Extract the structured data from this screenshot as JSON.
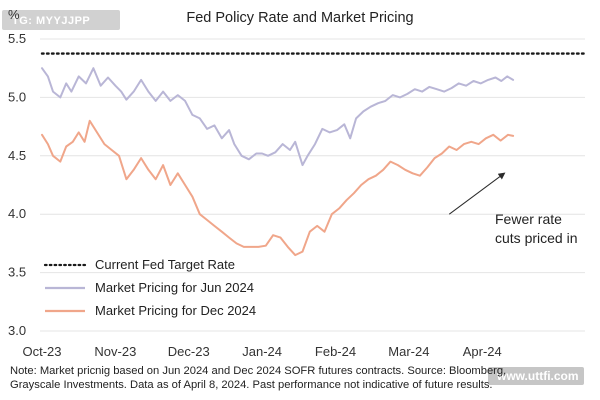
{
  "tag": "TG: MYYJJPP",
  "watermark": "www.uttfi.com",
  "footnote_line1": "Note: Market pricnig based on Jun 2024 and Dec 2024 SOFR futures contracts. Source: Bloomberg,",
  "footnote_line2": "Grayscale Investments. Data as of April 8, 2024. Past performance not indicative of future results.",
  "annotation": [
    "Fewer rate",
    "cuts priced in"
  ],
  "colors": {
    "target": "#1a1a1a",
    "jun": "#b9b6d6",
    "dec": "#f0a68a",
    "grid": "#e4e4e4",
    "arrow": "#2b2b2b"
  },
  "chart_data": {
    "type": "line",
    "title": "Fed Policy Rate and Market Pricing",
    "ylabel": "%",
    "ylim": [
      3.0,
      5.5
    ],
    "yticks": [
      "3.0",
      "3.5",
      "4.0",
      "4.5",
      "5.0",
      "5.5"
    ],
    "xlim": [
      0,
      7.4
    ],
    "xticks": [
      {
        "label": "Oct-23",
        "x": 0
      },
      {
        "label": "Nov-23",
        "x": 1
      },
      {
        "label": "Dec-23",
        "x": 2
      },
      {
        "label": "Jan-24",
        "x": 3
      },
      {
        "label": "Feb-24",
        "x": 4
      },
      {
        "label": "Mar-24",
        "x": 5
      },
      {
        "label": "Apr-24",
        "x": 6
      }
    ],
    "legend_position": "bottom-left",
    "series": [
      {
        "name": "Current Fed Target Rate",
        "style": "dotted",
        "color_key": "target",
        "points": [
          [
            0,
            5.375
          ],
          [
            7.4,
            5.375
          ]
        ]
      },
      {
        "name": "Market Pricing for Jun 2024",
        "style": "solid",
        "color_key": "jun",
        "points": [
          [
            0,
            5.25
          ],
          [
            0.08,
            5.18
          ],
          [
            0.15,
            5.05
          ],
          [
            0.25,
            5.0
          ],
          [
            0.33,
            5.12
          ],
          [
            0.4,
            5.05
          ],
          [
            0.5,
            5.18
          ],
          [
            0.6,
            5.12
          ],
          [
            0.7,
            5.25
          ],
          [
            0.8,
            5.1
          ],
          [
            0.9,
            5.17
          ],
          [
            1.0,
            5.1
          ],
          [
            1.08,
            5.05
          ],
          [
            1.15,
            4.98
          ],
          [
            1.25,
            5.05
          ],
          [
            1.35,
            5.15
          ],
          [
            1.45,
            5.05
          ],
          [
            1.55,
            4.97
          ],
          [
            1.65,
            5.05
          ],
          [
            1.75,
            4.97
          ],
          [
            1.85,
            5.02
          ],
          [
            1.95,
            4.97
          ],
          [
            2.05,
            4.85
          ],
          [
            2.15,
            4.82
          ],
          [
            2.25,
            4.73
          ],
          [
            2.35,
            4.76
          ],
          [
            2.45,
            4.65
          ],
          [
            2.55,
            4.72
          ],
          [
            2.62,
            4.6
          ],
          [
            2.72,
            4.5
          ],
          [
            2.82,
            4.47
          ],
          [
            2.92,
            4.52
          ],
          [
            3.0,
            4.52
          ],
          [
            3.08,
            4.5
          ],
          [
            3.18,
            4.53
          ],
          [
            3.28,
            4.6
          ],
          [
            3.38,
            4.55
          ],
          [
            3.45,
            4.62
          ],
          [
            3.55,
            4.42
          ],
          [
            3.62,
            4.5
          ],
          [
            3.72,
            4.6
          ],
          [
            3.82,
            4.73
          ],
          [
            3.92,
            4.7
          ],
          [
            4.02,
            4.72
          ],
          [
            4.12,
            4.77
          ],
          [
            4.2,
            4.65
          ],
          [
            4.28,
            4.82
          ],
          [
            4.38,
            4.88
          ],
          [
            4.48,
            4.92
          ],
          [
            4.58,
            4.95
          ],
          [
            4.68,
            4.97
          ],
          [
            4.78,
            5.02
          ],
          [
            4.88,
            5.0
          ],
          [
            4.98,
            5.03
          ],
          [
            5.08,
            5.07
          ],
          [
            5.18,
            5.05
          ],
          [
            5.28,
            5.09
          ],
          [
            5.38,
            5.07
          ],
          [
            5.48,
            5.05
          ],
          [
            5.58,
            5.08
          ],
          [
            5.68,
            5.12
          ],
          [
            5.78,
            5.1
          ],
          [
            5.88,
            5.14
          ],
          [
            5.98,
            5.12
          ],
          [
            6.08,
            5.15
          ],
          [
            6.18,
            5.17
          ],
          [
            6.26,
            5.14
          ],
          [
            6.34,
            5.18
          ],
          [
            6.42,
            5.15
          ]
        ]
      },
      {
        "name": "Market Pricing for Dec 2024",
        "style": "solid",
        "color_key": "dec",
        "points": [
          [
            0,
            4.68
          ],
          [
            0.08,
            4.6
          ],
          [
            0.15,
            4.5
          ],
          [
            0.25,
            4.45
          ],
          [
            0.33,
            4.58
          ],
          [
            0.42,
            4.62
          ],
          [
            0.5,
            4.7
          ],
          [
            0.58,
            4.62
          ],
          [
            0.65,
            4.8
          ],
          [
            0.75,
            4.7
          ],
          [
            0.85,
            4.6
          ],
          [
            0.95,
            4.55
          ],
          [
            1.05,
            4.5
          ],
          [
            1.15,
            4.3
          ],
          [
            1.25,
            4.38
          ],
          [
            1.35,
            4.48
          ],
          [
            1.45,
            4.38
          ],
          [
            1.55,
            4.3
          ],
          [
            1.65,
            4.42
          ],
          [
            1.75,
            4.25
          ],
          [
            1.85,
            4.35
          ],
          [
            1.95,
            4.25
          ],
          [
            2.05,
            4.15
          ],
          [
            2.15,
            4.0
          ],
          [
            2.25,
            3.95
          ],
          [
            2.35,
            3.9
          ],
          [
            2.45,
            3.85
          ],
          [
            2.55,
            3.8
          ],
          [
            2.65,
            3.75
          ],
          [
            2.75,
            3.72
          ],
          [
            2.85,
            3.72
          ],
          [
            2.95,
            3.72
          ],
          [
            3.05,
            3.73
          ],
          [
            3.15,
            3.82
          ],
          [
            3.25,
            3.8
          ],
          [
            3.35,
            3.72
          ],
          [
            3.45,
            3.65
          ],
          [
            3.55,
            3.68
          ],
          [
            3.65,
            3.85
          ],
          [
            3.75,
            3.9
          ],
          [
            3.85,
            3.85
          ],
          [
            3.95,
            4.0
          ],
          [
            4.05,
            4.05
          ],
          [
            4.15,
            4.12
          ],
          [
            4.25,
            4.18
          ],
          [
            4.35,
            4.25
          ],
          [
            4.45,
            4.3
          ],
          [
            4.55,
            4.33
          ],
          [
            4.65,
            4.38
          ],
          [
            4.75,
            4.45
          ],
          [
            4.85,
            4.42
          ],
          [
            4.95,
            4.38
          ],
          [
            5.05,
            4.35
          ],
          [
            5.15,
            4.33
          ],
          [
            5.25,
            4.4
          ],
          [
            5.35,
            4.48
          ],
          [
            5.45,
            4.52
          ],
          [
            5.55,
            4.58
          ],
          [
            5.65,
            4.55
          ],
          [
            5.75,
            4.6
          ],
          [
            5.85,
            4.62
          ],
          [
            5.95,
            4.6
          ],
          [
            6.05,
            4.65
          ],
          [
            6.15,
            4.68
          ],
          [
            6.25,
            4.63
          ],
          [
            6.35,
            4.68
          ],
          [
            6.42,
            4.67
          ]
        ]
      }
    ],
    "annotation_arrow": {
      "from": [
        5.55,
        4.0
      ],
      "to": [
        6.3,
        4.35
      ]
    }
  }
}
